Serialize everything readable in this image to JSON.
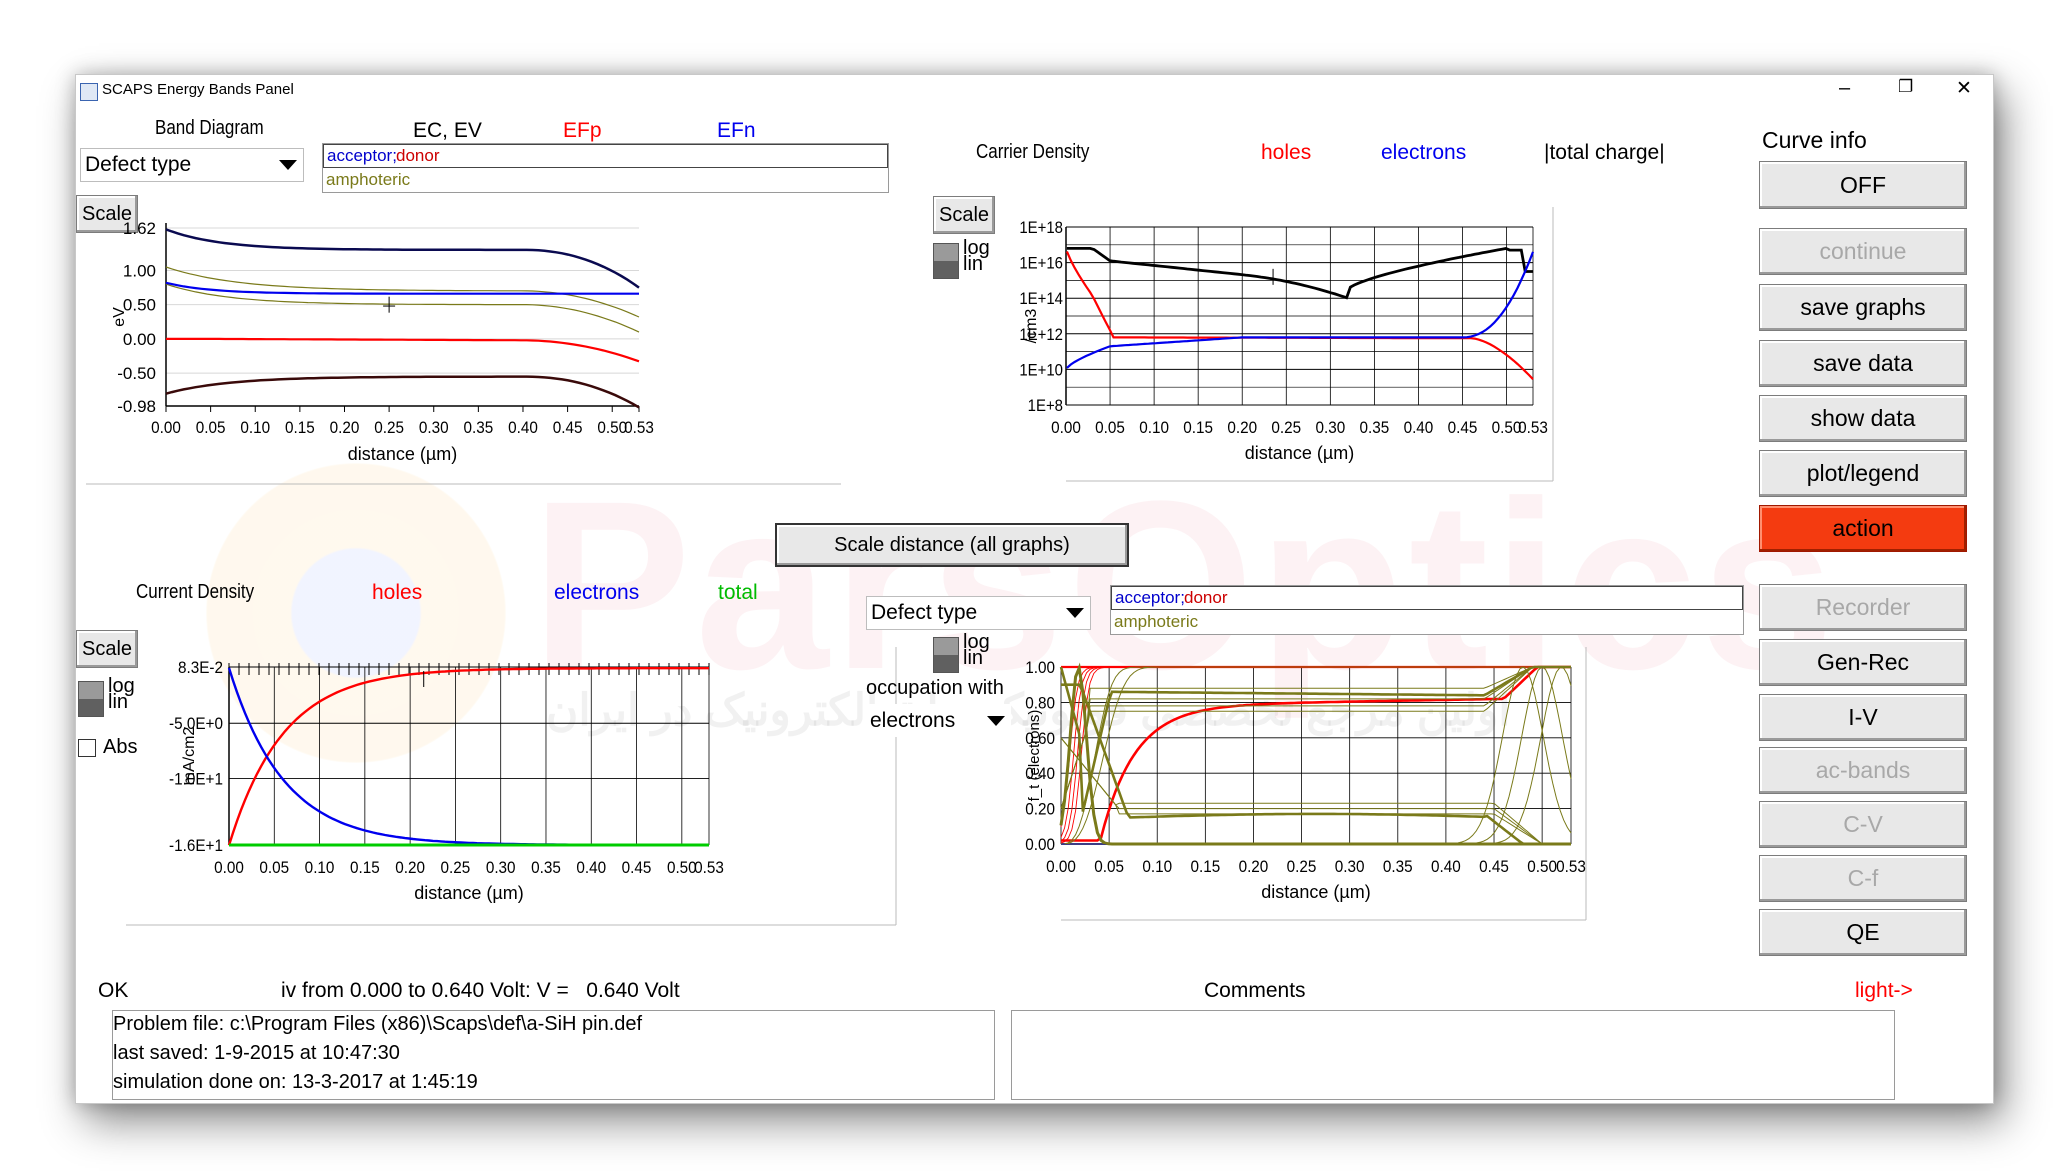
{
  "window": {
    "title": "SCAPS Energy Bands Panel",
    "min": "–",
    "max": "❐",
    "close": "✕"
  },
  "watermark": {
    "main": "ParsOptics",
    "sub": "اولین مرجع تخصصی فوتونیک و اپتوالکترونیک در ایران"
  },
  "band": {
    "title": "Band Diagram",
    "defect_select": "Defect type",
    "legend_ec": "EC, EV",
    "legend_efp": "EFp",
    "legend_efn": "EFn",
    "defect_list": {
      "item1_a": "acceptor;",
      "item1_b": "donor",
      "item2": "amphoteric"
    },
    "scale": "Scale",
    "ylabel": "eV",
    "xlabel": "distance (µm)",
    "yticks": [
      "1.62",
      "1.00",
      "0.50",
      "0.00",
      "-0.50",
      "-0.98"
    ],
    "xticks": [
      "0.00",
      "0.05",
      "0.10",
      "0.15",
      "0.20",
      "0.25",
      "0.30",
      "0.35",
      "0.40",
      "0.45",
      "0.50",
      "0.53"
    ]
  },
  "carrier": {
    "title": "Carrier Density",
    "legend_holes": "holes",
    "legend_electrons": "electrons",
    "legend_total": "|total charge|",
    "scale": "Scale",
    "log": "log",
    "lin": "lin",
    "ylabel": "/cm3",
    "xlabel": "distance (µm)",
    "yticks": [
      "1E+18",
      "1E+16",
      "1E+14",
      "1E+12",
      "1E+10",
      "1E+8"
    ],
    "xticks": [
      "0.00",
      "0.05",
      "0.10",
      "0.15",
      "0.20",
      "0.25",
      "0.30",
      "0.35",
      "0.40",
      "0.45",
      "0.50",
      "0.53"
    ]
  },
  "scale_all": "Scale distance (all graphs)",
  "current": {
    "title": "Current Density",
    "legend_holes": "holes",
    "legend_electrons": "electrons",
    "legend_total": "total",
    "scale": "Scale",
    "log": "log",
    "lin": "lin",
    "abs": "Abs",
    "ylabel": "mA/cm2",
    "xlabel": "distance (µm)",
    "yticks": [
      "8.3E-2",
      "-5.0E+0",
      "-1.0E+1",
      "-1.6E+1"
    ],
    "xticks": [
      "0.00",
      "0.05",
      "0.10",
      "0.15",
      "0.20",
      "0.25",
      "0.30",
      "0.35",
      "0.40",
      "0.45",
      "0.50",
      "0.53"
    ]
  },
  "occupation": {
    "defect_select": "Defect type",
    "log": "log",
    "lin": "lin",
    "label": "occupation with",
    "carrier_select": "electrons",
    "defect_list": {
      "item1_a": "acceptor;",
      "item1_b": "donor",
      "item2": "amphoteric"
    },
    "ylabel": "f_t (electrons)",
    "xlabel": "distance (µm)",
    "yticks": [
      "1.00",
      "0.80",
      "0.60",
      "0.40",
      "0.20",
      "0.00"
    ],
    "xticks": [
      "0.00",
      "0.05",
      "0.10",
      "0.15",
      "0.20",
      "0.25",
      "0.30",
      "0.35",
      "0.40",
      "0.45",
      "0.50",
      "0.53"
    ]
  },
  "side": {
    "curve_info": "Curve info",
    "off": "OFF",
    "continue": "continue",
    "save_graphs": "save graphs",
    "save_data": "save data",
    "show_data": "show data",
    "plot_legend": "plot/legend",
    "action": "action",
    "recorder": "Recorder",
    "gen_rec": "Gen-Rec",
    "iv": "I-V",
    "ac_bands": "ac-bands",
    "cv": "C-V",
    "cf": "C-f",
    "qe": "QE"
  },
  "status": {
    "ok": "OK",
    "iv_text": "iv from 0.000 to 0.640 Volt: V =   0.640 Volt",
    "comments": "Comments",
    "light": "light->",
    "problem_file": "Problem file: c:\\Program Files (x86)\\Scaps\\def\\a-SiH pin.def",
    "last_saved": "last saved: 1-9-2015 at 10:47:30",
    "sim_done": "simulation done on: 13-3-2017 at 1:45:19"
  },
  "colors": {
    "red": "#ff0000",
    "blue": "#0000ee",
    "green": "#00cc00",
    "dark": "#000000",
    "olive": "#7a7a1a",
    "navy": "#0a0a50",
    "action": "#f43b10"
  }
}
